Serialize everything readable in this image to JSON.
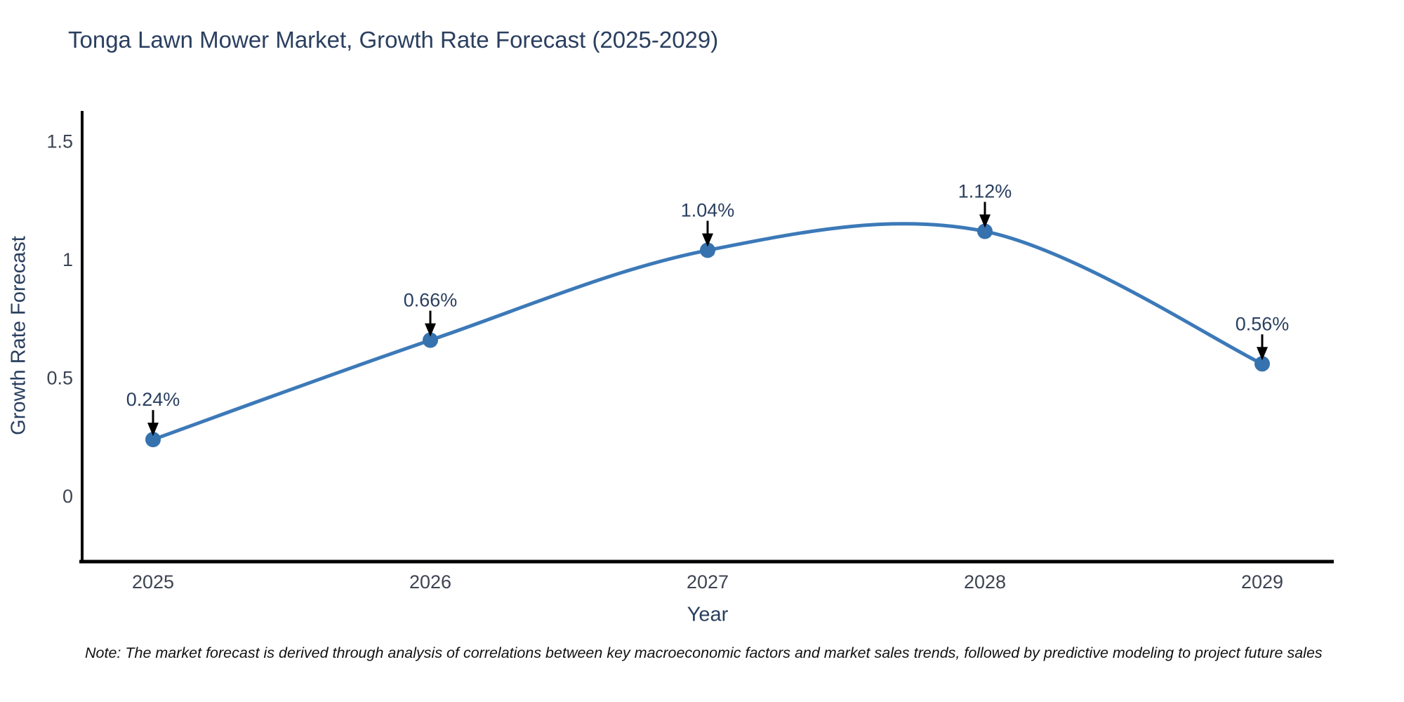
{
  "note": "Note: The market forecast is derived through analysis of correlations between key macroeconomic factors and market sales trends, followed by predictive modeling to project future sales",
  "chart_data": {
    "type": "line",
    "title": "Tonga Lawn Mower Market, Growth Rate Forecast (2025-2029)",
    "xlabel": "Year",
    "ylabel": "Growth Rate Forecast",
    "categories": [
      "2025",
      "2026",
      "2027",
      "2028",
      "2029"
    ],
    "series": [
      {
        "name": "Growth Rate Forecast",
        "values": [
          0.24,
          0.66,
          1.04,
          1.12,
          0.56
        ]
      }
    ],
    "point_labels": [
      "0.24%",
      "0.66%",
      "1.04%",
      "1.12%",
      "0.56%"
    ],
    "yticks": [
      0,
      0.5,
      1,
      1.5
    ],
    "ylim": [
      -0.28,
      1.62
    ],
    "line_shape": "spline",
    "grid": false,
    "legend": "none",
    "annotation_arrows": true,
    "colors": {
      "line": "#3c79b8",
      "marker": "#3672ad",
      "axis": "#000000",
      "title_text": "#2a3f5f",
      "tick_text": "#3d4452",
      "annotation_text": "#2a3f5f",
      "arrow": "#000000",
      "note_text": "#111111",
      "background": "#ffffff"
    }
  }
}
